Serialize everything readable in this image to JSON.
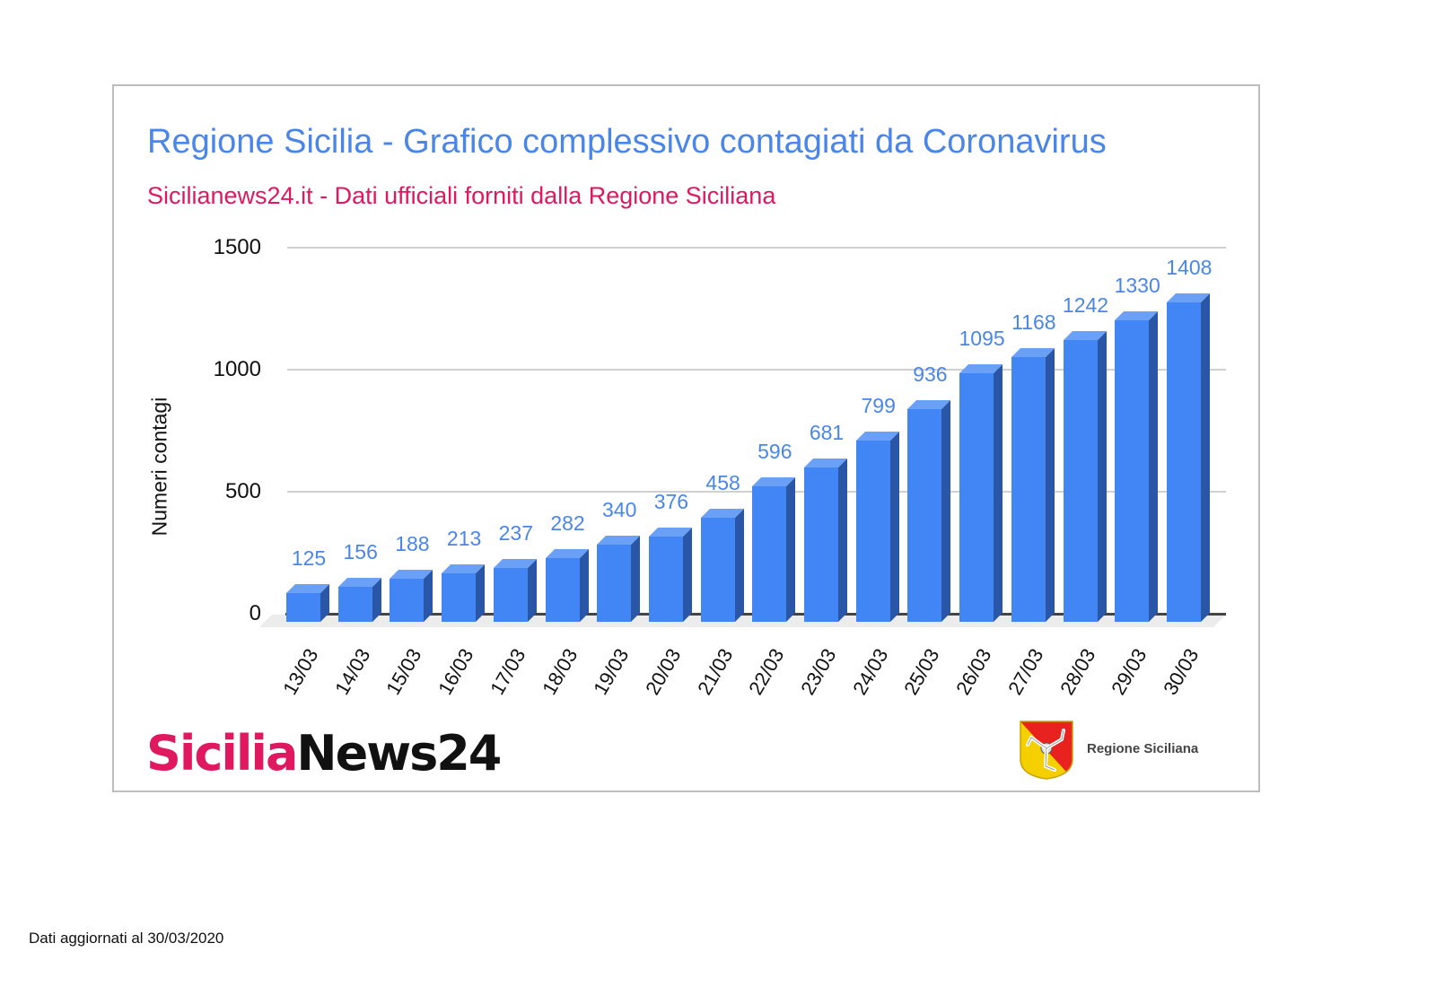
{
  "page": {
    "title": "Regione Sicilia - Grafico complessivo contagiati da Coronavirus",
    "subtitle": "Sicilianews24.it - Dati ufficiali forniti dalla Regione Siciliana",
    "footnote": "Dati aggiornati al 30/03/2020",
    "logos": {
      "sicilianews_part1": "Sicilia",
      "sicilianews_part2": "News24",
      "regione_label": "Regione Siciliana"
    },
    "colors": {
      "title": "#4a86e8",
      "subtitle": "#e0185f",
      "bar": "#4285f4",
      "bar_side": "#2a56a8",
      "bar_top": "#6aa0f6",
      "data_label": "#4a86e8"
    }
  },
  "chart_data": {
    "type": "bar",
    "title": "Regione Sicilia - Grafico complessivo contagiati da Coronavirus",
    "subtitle": "Sicilianews24.it - Dati ufficiali forniti dalla Regione Siciliana",
    "xlabel": "",
    "ylabel": "Numeri contagi",
    "ylim": [
      0,
      1500
    ],
    "yticks": [
      0,
      500,
      1000,
      1500
    ],
    "grid": true,
    "legend": null,
    "style": "3d-column",
    "categories": [
      "13/03",
      "14/03",
      "15/03",
      "16/03",
      "17/03",
      "18/03",
      "19/03",
      "20/03",
      "21/03",
      "22/03",
      "23/03",
      "24/03",
      "25/03",
      "26/03",
      "27/03",
      "28/03",
      "29/03",
      "30/03"
    ],
    "values": [
      125,
      156,
      188,
      213,
      237,
      282,
      340,
      376,
      458,
      596,
      681,
      799,
      936,
      1095,
      1168,
      1242,
      1330,
      1408
    ]
  }
}
